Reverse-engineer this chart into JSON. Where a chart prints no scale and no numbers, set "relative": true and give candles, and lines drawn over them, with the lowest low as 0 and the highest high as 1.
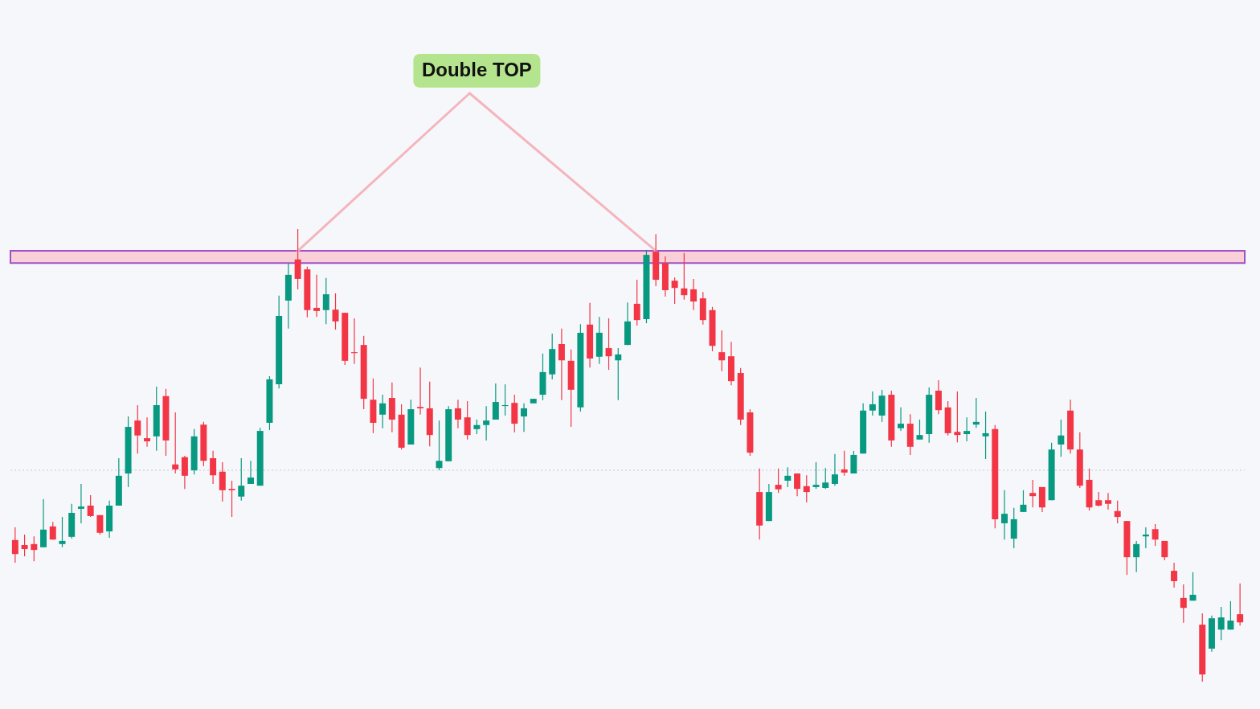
{
  "chart_data": {
    "type": "candlestick",
    "relative": true,
    "categories": [
      null,
      null,
      null,
      null,
      null,
      null,
      null,
      null,
      null,
      null,
      null,
      null,
      null,
      null,
      null,
      null,
      null,
      null,
      null,
      null,
      null,
      null,
      null,
      null,
      null,
      null,
      null,
      null,
      null,
      null,
      null,
      null,
      null,
      null,
      null,
      null,
      null,
      null,
      null,
      null,
      null,
      null,
      null,
      null,
      null,
      null,
      null,
      null,
      null,
      null,
      null,
      null,
      null,
      null,
      null,
      null,
      null,
      null,
      null,
      null,
      null,
      null,
      null,
      null,
      null,
      null,
      null,
      null,
      null,
      null,
      null,
      null,
      null,
      null,
      null,
      null,
      null,
      null,
      null,
      null,
      null,
      null,
      null,
      null,
      null,
      null,
      null,
      null,
      null,
      null,
      null,
      null,
      null,
      null,
      null,
      null,
      null,
      null,
      null,
      null,
      null,
      null,
      null,
      null,
      null,
      null,
      null,
      null,
      null,
      null,
      null,
      null,
      null,
      null,
      null,
      null,
      null,
      null,
      null,
      null,
      null,
      null,
      null,
      null,
      null,
      null,
      null,
      null,
      null,
      null,
      null
    ],
    "ohlc": [
      [
        0.313,
        0.341,
        0.263,
        0.282
      ],
      [
        0.302,
        0.325,
        0.277,
        0.293
      ],
      [
        0.304,
        0.321,
        0.266,
        0.291
      ],
      [
        0.297,
        0.403,
        0.297,
        0.336
      ],
      [
        0.343,
        0.353,
        0.314,
        0.314
      ],
      [
        0.304,
        0.364,
        0.297,
        0.311
      ],
      [
        0.32,
        0.393,
        0.316,
        0.373
      ],
      [
        0.382,
        0.437,
        0.35,
        0.387
      ],
      [
        0.389,
        0.412,
        0.364,
        0.366
      ],
      [
        0.368,
        0.368,
        0.325,
        0.329
      ],
      [
        0.332,
        0.4,
        0.318,
        0.389
      ],
      [
        0.389,
        0.494,
        0.389,
        0.455
      ],
      [
        0.46,
        0.586,
        0.43,
        0.563
      ],
      [
        0.577,
        0.611,
        0.504,
        0.544
      ],
      [
        0.538,
        0.584,
        0.519,
        0.531
      ],
      [
        0.542,
        0.652,
        0.51,
        0.611
      ],
      [
        0.631,
        0.647,
        0.499,
        0.533
      ],
      [
        0.48,
        0.595,
        0.46,
        0.469
      ],
      [
        0.496,
        0.499,
        0.426,
        0.455
      ],
      [
        0.467,
        0.558,
        0.458,
        0.542
      ],
      [
        0.568,
        0.574,
        0.476,
        0.488
      ],
      [
        0.494,
        0.51,
        0.437,
        0.456
      ],
      [
        0.464,
        0.485,
        0.398,
        0.423
      ],
      [
        0.426,
        0.444,
        0.364,
        0.423
      ],
      [
        0.409,
        0.494,
        0.4,
        0.433
      ],
      [
        0.437,
        0.488,
        0.437,
        0.451
      ],
      [
        0.433,
        0.561,
        0.433,
        0.554
      ],
      [
        0.572,
        0.675,
        0.556,
        0.668
      ],
      [
        0.657,
        0.853,
        0.648,
        0.808
      ],
      [
        0.842,
        0.924,
        0.78,
        0.899
      ],
      [
        0.933,
        1.0,
        0.867,
        0.89
      ],
      [
        0.911,
        0.917,
        0.805,
        0.821
      ],
      [
        0.826,
        0.899,
        0.806,
        0.819
      ],
      [
        0.821,
        0.892,
        0.79,
        0.856
      ],
      [
        0.822,
        0.858,
        0.778,
        0.796
      ],
      [
        0.815,
        0.815,
        0.7,
        0.709
      ],
      [
        0.728,
        0.803,
        0.702,
        0.726
      ],
      [
        0.744,
        0.764,
        0.602,
        0.625
      ],
      [
        0.623,
        0.67,
        0.549,
        0.572
      ],
      [
        0.59,
        0.634,
        0.56,
        0.615
      ],
      [
        0.627,
        0.661,
        0.551,
        0.579
      ],
      [
        0.59,
        0.613,
        0.513,
        0.517
      ],
      [
        0.524,
        0.623,
        0.524,
        0.602
      ],
      [
        0.607,
        0.694,
        0.59,
        0.604
      ],
      [
        0.604,
        0.663,
        0.52,
        0.545
      ],
      [
        0.472,
        0.577,
        0.467,
        0.488
      ],
      [
        0.487,
        0.609,
        0.487,
        0.602
      ],
      [
        0.604,
        0.623,
        0.56,
        0.579
      ],
      [
        0.584,
        0.62,
        0.535,
        0.545
      ],
      [
        0.558,
        0.579,
        0.547,
        0.567
      ],
      [
        0.567,
        0.609,
        0.533,
        0.577
      ],
      [
        0.579,
        0.659,
        0.579,
        0.618
      ],
      [
        0.609,
        0.657,
        0.588,
        0.611
      ],
      [
        0.616,
        0.634,
        0.551,
        0.57
      ],
      [
        0.586,
        0.615,
        0.552,
        0.604
      ],
      [
        0.615,
        0.625,
        0.615,
        0.625
      ],
      [
        0.634,
        0.725,
        0.622,
        0.684
      ],
      [
        0.679,
        0.769,
        0.668,
        0.735
      ],
      [
        0.746,
        0.78,
        0.622,
        0.71
      ],
      [
        0.709,
        0.734,
        0.563,
        0.645
      ],
      [
        0.606,
        0.79,
        0.597,
        0.771
      ],
      [
        0.789,
        0.837,
        0.694,
        0.714
      ],
      [
        0.718,
        0.806,
        0.702,
        0.771
      ],
      [
        0.737,
        0.803,
        0.689,
        0.719
      ],
      [
        0.71,
        0.737,
        0.622,
        0.723
      ],
      [
        0.744,
        0.838,
        0.744,
        0.796
      ],
      [
        0.835,
        0.888,
        0.787,
        0.799
      ],
      [
        0.801,
        0.954,
        0.792,
        0.943
      ],
      [
        0.95,
        0.989,
        0.874,
        0.888
      ],
      [
        0.925,
        0.94,
        0.851,
        0.865
      ],
      [
        0.886,
        0.893,
        0.835,
        0.87
      ],
      [
        0.869,
        0.947,
        0.844,
        0.854
      ],
      [
        0.867,
        0.89,
        0.821,
        0.84
      ],
      [
        0.847,
        0.861,
        0.789,
        0.799
      ],
      [
        0.821,
        0.828,
        0.73,
        0.742
      ],
      [
        0.728,
        0.776,
        0.686,
        0.71
      ],
      [
        0.719,
        0.751,
        0.655,
        0.664
      ],
      [
        0.682,
        0.693,
        0.567,
        0.579
      ],
      [
        0.595,
        0.602,
        0.499,
        0.506
      ],
      [
        0.419,
        0.471,
        0.314,
        0.345
      ],
      [
        0.355,
        0.437,
        0.355,
        0.419
      ],
      [
        0.435,
        0.471,
        0.417,
        0.425
      ],
      [
        0.444,
        0.474,
        0.43,
        0.455
      ],
      [
        0.46,
        0.46,
        0.41,
        0.426
      ],
      [
        0.432,
        0.456,
        0.396,
        0.419
      ],
      [
        0.43,
        0.485,
        0.426,
        0.435
      ],
      [
        0.428,
        0.472,
        0.426,
        0.44
      ],
      [
        0.437,
        0.503,
        0.433,
        0.458
      ],
      [
        0.469,
        0.51,
        0.455,
        0.462
      ],
      [
        0.46,
        0.51,
        0.46,
        0.501
      ],
      [
        0.504,
        0.615,
        0.504,
        0.599
      ],
      [
        0.599,
        0.641,
        0.588,
        0.613
      ],
      [
        0.588,
        0.645,
        0.574,
        0.632
      ],
      [
        0.634,
        0.643,
        0.519,
        0.533
      ],
      [
        0.56,
        0.606,
        0.554,
        0.57
      ],
      [
        0.57,
        0.591,
        0.501,
        0.519
      ],
      [
        0.535,
        0.579,
        0.535,
        0.545
      ],
      [
        0.547,
        0.65,
        0.528,
        0.634
      ],
      [
        0.643,
        0.666,
        0.591,
        0.6
      ],
      [
        0.606,
        0.62,
        0.544,
        0.549
      ],
      [
        0.552,
        0.641,
        0.529,
        0.545
      ],
      [
        0.547,
        0.584,
        0.531,
        0.554
      ],
      [
        0.568,
        0.627,
        0.561,
        0.574
      ],
      [
        0.542,
        0.597,
        0.492,
        0.549
      ],
      [
        0.558,
        0.567,
        0.339,
        0.359
      ],
      [
        0.35,
        0.423,
        0.314,
        0.371
      ],
      [
        0.316,
        0.384,
        0.295,
        0.359
      ],
      [
        0.375,
        0.423,
        0.375,
        0.391
      ],
      [
        0.417,
        0.446,
        0.385,
        0.41
      ],
      [
        0.43,
        0.43,
        0.375,
        0.385
      ],
      [
        0.401,
        0.528,
        0.401,
        0.513
      ],
      [
        0.524,
        0.579,
        0.497,
        0.544
      ],
      [
        0.599,
        0.623,
        0.504,
        0.513
      ],
      [
        0.513,
        0.551,
        0.428,
        0.433
      ],
      [
        0.446,
        0.471,
        0.378,
        0.385
      ],
      [
        0.401,
        0.419,
        0.387,
        0.389
      ],
      [
        0.401,
        0.417,
        0.38,
        0.393
      ],
      [
        0.377,
        0.4,
        0.35,
        0.364
      ],
      [
        0.355,
        0.355,
        0.236,
        0.275
      ],
      [
        0.275,
        0.311,
        0.242,
        0.304
      ],
      [
        0.321,
        0.341,
        0.295,
        0.325
      ],
      [
        0.337,
        0.348,
        0.3,
        0.314
      ],
      [
        0.311,
        0.311,
        0.268,
        0.275
      ],
      [
        0.245,
        0.263,
        0.208,
        0.222
      ],
      [
        0.185,
        0.215,
        0.13,
        0.163
      ],
      [
        0.179,
        0.242,
        0.179,
        0.192
      ],
      [
        0.126,
        0.151,
        0.0,
        0.016
      ],
      [
        0.073,
        0.146,
        0.066,
        0.14
      ],
      [
        0.115,
        0.165,
        0.092,
        0.142
      ],
      [
        0.115,
        0.178,
        0.115,
        0.135
      ],
      [
        0.149,
        0.217,
        0.124,
        0.131
      ]
    ],
    "colors": [
      "#f23645",
      "#f23645",
      "#f23645",
      "#089981",
      "#f23645",
      "#089981",
      "#089981",
      "#089981",
      "#f23645",
      "#f23645",
      "#089981",
      "#089981",
      "#089981",
      "#f23645",
      "#f23645",
      "#089981",
      "#f23645",
      "#f23645",
      "#f23645",
      "#089981",
      "#f23645",
      "#f23645",
      "#f23645",
      "#f23645",
      "#089981",
      "#089981",
      "#089981",
      "#089981",
      "#089981",
      "#089981",
      "#f23645",
      "#f23645",
      "#f23645",
      "#089981",
      "#f23645",
      "#f23645",
      "#f23645",
      "#f23645",
      "#f23645",
      "#089981",
      "#f23645",
      "#f23645",
      "#089981",
      "#f23645",
      "#f23645",
      "#089981",
      "#089981",
      "#f23645",
      "#f23645",
      "#089981",
      "#089981",
      "#089981",
      "#089981",
      "#f23645",
      "#089981",
      "#089981",
      "#089981",
      "#089981",
      "#f23645",
      "#f23645",
      "#089981",
      "#f23645",
      "#089981",
      "#f23645",
      "#089981",
      "#089981",
      "#f23645",
      "#089981",
      "#f23645",
      "#f23645",
      "#f23645",
      "#f23645",
      "#f23645",
      "#f23645",
      "#f23645",
      "#f23645",
      "#f23645",
      "#f23645",
      "#f23645",
      "#f23645",
      "#089981",
      "#f23645",
      "#089981",
      "#f23645",
      "#f23645",
      "#089981",
      "#089981",
      "#089981",
      "#f23645",
      "#089981",
      "#089981",
      "#089981",
      "#089981",
      "#f23645",
      "#089981",
      "#f23645",
      "#089981",
      "#089981",
      "#f23645",
      "#f23645",
      "#f23645",
      "#089981",
      "#089981",
      "#089981",
      "#f23645",
      "#089981",
      "#089981",
      "#089981",
      "#f23645",
      "#f23645",
      "#089981",
      "#089981",
      "#f23645",
      "#f23645",
      "#f23645",
      "#f23645",
      "#f23645",
      "#f23645",
      "#f23645",
      "#089981",
      "#089981",
      "#f23645",
      "#f23645",
      "#f23645",
      "#f23645",
      "#089981",
      "#f23645",
      "#089981",
      "#089981",
      "#089981",
      "#f23645"
    ],
    "annotations": [
      "Double TOP"
    ],
    "bands": [
      {
        "axis": "y",
        "from": 0.925,
        "to": 0.952,
        "color": "#f9d0d8"
      }
    ],
    "ref_lines": [
      {
        "axis": "y",
        "value": 0.467,
        "line_style": "dotted",
        "color": "#d3d7de"
      }
    ]
  }
}
